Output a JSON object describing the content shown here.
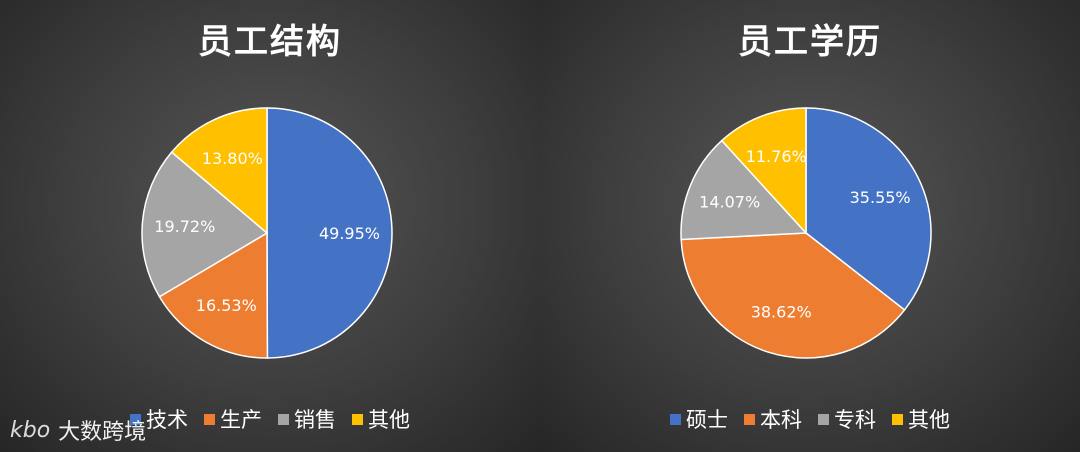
{
  "chart_data": [
    {
      "type": "pie",
      "title": "员工结构",
      "categories": [
        "技术",
        "生产",
        "销售",
        "其他"
      ],
      "values": [
        49.95,
        16.53,
        19.72,
        13.8
      ],
      "data_labels": [
        "49.95%",
        "16.53%",
        "19.72%",
        "13.80%"
      ],
      "colors": [
        "#4472C4",
        "#ED7D31",
        "#A5A5A5",
        "#FFC000"
      ],
      "legend": "bottom"
    },
    {
      "type": "pie",
      "title": "员工学历",
      "categories": [
        "硕士",
        "本科",
        "专科",
        "其他"
      ],
      "values": [
        35.55,
        38.62,
        14.07,
        11.76
      ],
      "data_labels": [
        "35.55%",
        "38.62%",
        "14.07%",
        "11.76%"
      ],
      "colors": [
        "#4472C4",
        "#ED7D31",
        "#A5A5A5",
        "#FFC000"
      ],
      "legend": "bottom"
    }
  ],
  "watermark": {
    "logo_text": "kbo",
    "text": "大数跨境"
  }
}
